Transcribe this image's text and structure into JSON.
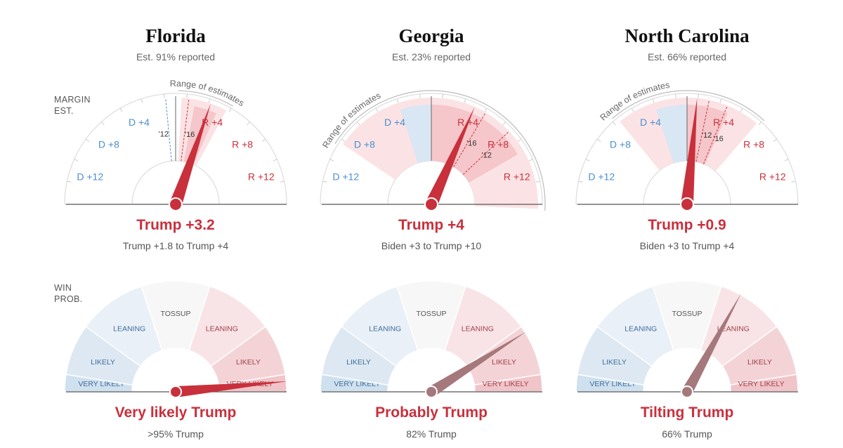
{
  "labels": {
    "margin": [
      "Margin",
      "est."
    ],
    "winprob": [
      "Win",
      "prob."
    ]
  },
  "colors": {
    "dem": "#4a8fcf",
    "rep": "#c8303c",
    "needle_margin": "#c8303c",
    "needle_prob": "#a5787c"
  },
  "chart_data": [
    {
      "type": "gauge",
      "state": "Florida",
      "reported": "Est. 91% reported",
      "margin": {
        "axis_range": [
          -15,
          15
        ],
        "tick_labels": [
          "D +12",
          "D +8",
          "D +4",
          "R +4",
          "R +8",
          "R +12"
        ],
        "estimate": 3.2,
        "range": [
          1.8,
          4
        ],
        "range_label": "Range of estimates",
        "references": [
          {
            "label": "'12",
            "value": -0.9,
            "party": "dem"
          },
          {
            "label": "'16",
            "value": 1.2,
            "party": "rep"
          }
        ],
        "headline": "Trump +3.2",
        "range_text": "Trump +1.8 to Trump +4"
      },
      "win_prob": {
        "zones": [
          "Very likely",
          "Likely",
          "Leaning",
          "Tossup",
          "Leaning",
          "Likely",
          "Very likely"
        ],
        "trump_probability": 0.97,
        "headline": "Very likely Trump",
        "text": ">95% Trump"
      }
    },
    {
      "type": "gauge",
      "state": "Georgia",
      "reported": "Est. 23% reported",
      "margin": {
        "axis_range": [
          -15,
          15
        ],
        "tick_labels": [
          "D +12",
          "D +8",
          "D +4",
          "R +4",
          "R +8",
          "R +12"
        ],
        "estimate": 4,
        "range": [
          -3,
          10
        ],
        "range_label": "Range of estimates",
        "references": [
          {
            "label": "'16",
            "value": 5.1,
            "party": "rep"
          },
          {
            "label": "'12",
            "value": 7.8,
            "party": "rep"
          }
        ],
        "headline": "Trump +4",
        "range_text": "Biden +3 to Trump +10"
      },
      "win_prob": {
        "zones": [
          "Very likely",
          "Likely",
          "Leaning",
          "Tossup",
          "Leaning",
          "Likely",
          "Very likely"
        ],
        "trump_probability": 0.82,
        "headline": "Probably Trump",
        "text": "82% Trump"
      }
    },
    {
      "type": "gauge",
      "state": "North Carolina",
      "reported": "Est. 66% reported",
      "margin": {
        "axis_range": [
          -15,
          15
        ],
        "tick_labels": [
          "D +12",
          "D +8",
          "D +4",
          "R +4",
          "R +8",
          "R +12"
        ],
        "estimate": 0.9,
        "range": [
          -3,
          4
        ],
        "range_label": "Range of estimates",
        "references": [
          {
            "label": "'12",
            "value": 2.0,
            "party": "rep"
          },
          {
            "label": "'16",
            "value": 3.7,
            "party": "rep"
          }
        ],
        "headline": "Trump +0.9",
        "range_text": "Biden +3 to Trump +4"
      },
      "win_prob": {
        "zones": [
          "Very likely",
          "Likely",
          "Leaning",
          "Tossup",
          "Leaning",
          "Likely",
          "Very likely"
        ],
        "trump_probability": 0.66,
        "headline": "Tilting Trump",
        "text": "66% Trump"
      }
    }
  ]
}
